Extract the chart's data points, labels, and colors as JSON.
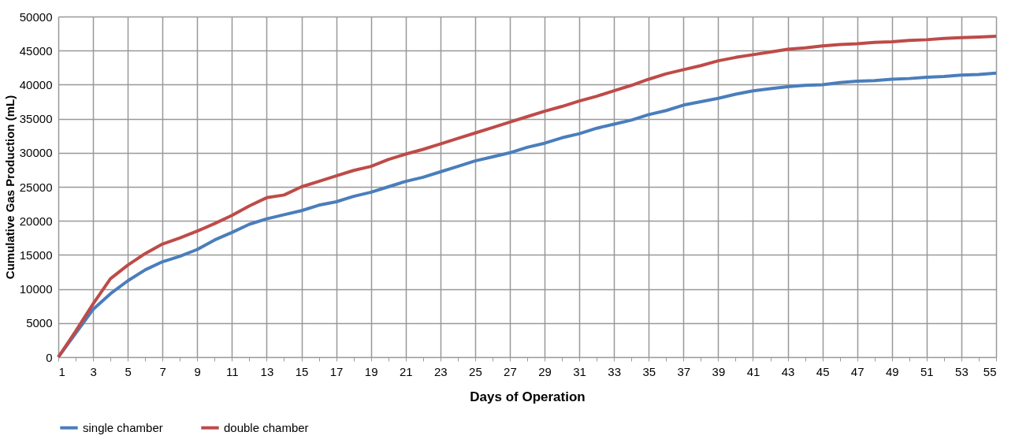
{
  "chart_data": {
    "type": "line",
    "xlabel": "Days of Operation",
    "ylabel": "Cumulative Gas Production (mL)",
    "x": [
      1,
      2,
      3,
      4,
      5,
      6,
      7,
      8,
      9,
      10,
      11,
      12,
      13,
      14,
      15,
      16,
      17,
      18,
      19,
      20,
      21,
      22,
      23,
      24,
      25,
      26,
      27,
      28,
      29,
      30,
      31,
      32,
      33,
      34,
      35,
      36,
      37,
      38,
      39,
      40,
      41,
      42,
      43,
      44,
      45,
      46,
      47,
      48,
      49,
      50,
      51,
      52,
      53,
      54,
      55
    ],
    "series": [
      {
        "name": "single chamber",
        "color": "#4a7ebb",
        "values": [
          0,
          3500,
          7000,
          9300,
          11200,
          12800,
          14000,
          14800,
          15800,
          17200,
          18300,
          19500,
          20300,
          20900,
          21500,
          22300,
          22800,
          23600,
          24200,
          25000,
          25800,
          26400,
          27200,
          28000,
          28800,
          29400,
          30000,
          30800,
          31400,
          32200,
          32800,
          33600,
          34200,
          34800,
          35600,
          36200,
          37000,
          37500,
          38000,
          38600,
          39100,
          39400,
          39700,
          39900,
          40000,
          40300,
          40500,
          40600,
          40800,
          40900,
          41100,
          41200,
          41400,
          41500,
          41700
        ]
      },
      {
        "name": "double chamber",
        "color": "#be4b48",
        "values": [
          0,
          3800,
          7800,
          11500,
          13500,
          15200,
          16600,
          17500,
          18500,
          19600,
          20800,
          22200,
          23400,
          23800,
          25000,
          25800,
          26600,
          27400,
          28000,
          29000,
          29800,
          30500,
          31300,
          32100,
          32900,
          33700,
          34500,
          35300,
          36100,
          36800,
          37600,
          38300,
          39100,
          39900,
          40800,
          41600,
          42200,
          42800,
          43500,
          44000,
          44400,
          44800,
          45200,
          45400,
          45700,
          45900,
          46000,
          46200,
          46300,
          46500,
          46600,
          46800,
          46900,
          47000,
          47100
        ]
      }
    ],
    "xlim": [
      1,
      55
    ],
    "xticks": [
      1,
      {
        "value": 2,
        "label": null
      },
      3,
      {
        "value": 4,
        "label": null
      },
      5,
      {
        "value": 6,
        "label": null
      },
      7,
      {
        "value": 8,
        "label": null
      },
      9,
      {
        "value": 10,
        "label": null
      },
      11,
      {
        "value": 12,
        "label": null
      },
      13,
      {
        "value": 14,
        "label": null
      },
      15,
      {
        "value": 16,
        "label": null
      },
      17,
      {
        "value": 18,
        "label": null
      },
      19,
      {
        "value": 20,
        "label": null
      },
      21,
      {
        "value": 22,
        "label": null
      },
      23,
      {
        "value": 24,
        "label": null
      },
      25,
      {
        "value": 26,
        "label": null
      },
      27,
      {
        "value": 28,
        "label": null
      },
      29,
      {
        "value": 30,
        "label": null
      },
      31,
      {
        "value": 32,
        "label": null
      },
      33,
      {
        "value": 34,
        "label": null
      },
      35,
      {
        "value": 36,
        "label": null
      },
      37,
      {
        "value": 38,
        "label": null
      },
      39,
      {
        "value": 40,
        "label": null
      },
      41,
      {
        "value": 42,
        "label": null
      },
      43,
      {
        "value": 44,
        "label": null
      },
      45,
      {
        "value": 46,
        "label": null
      },
      47,
      {
        "value": 48,
        "label": null
      },
      49,
      {
        "value": 50,
        "label": null
      },
      51,
      {
        "value": 52,
        "label": null
      },
      53,
      {
        "value": 54,
        "label": null
      },
      55
    ],
    "ylim": [
      0,
      50000
    ],
    "yticks": [
      0,
      5000,
      10000,
      15000,
      20000,
      25000,
      30000,
      35000,
      40000,
      45000,
      50000
    ],
    "grid": true,
    "legend": "bottom",
    "marker": "none",
    "line_style": "solid"
  }
}
